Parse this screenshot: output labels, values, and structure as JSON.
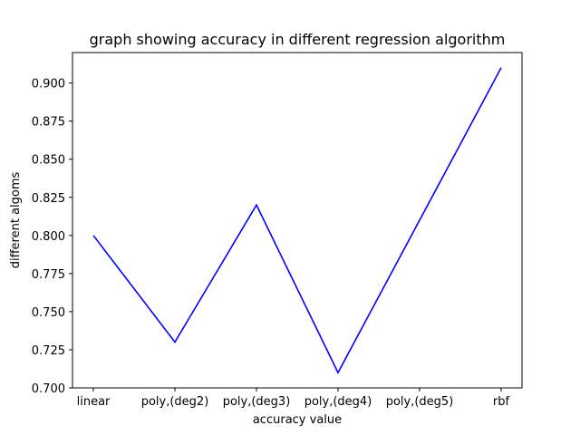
{
  "chart_data": {
    "type": "line",
    "title": "graph showing accuracy in different regression algorithm",
    "xlabel": "accuracy value",
    "ylabel": "different algoms",
    "categories": [
      "linear",
      "poly,(deg2)",
      "poly,(deg3)",
      "poly,(deg4)",
      "poly,(deg5)",
      "rbf"
    ],
    "series": [
      {
        "values": [
          0.8,
          0.73,
          0.82,
          0.71,
          0.81,
          0.91
        ]
      }
    ],
    "ylim": [
      0.7,
      0.92
    ],
    "yticks": [
      "0.700",
      "0.725",
      "0.750",
      "0.775",
      "0.800",
      "0.825",
      "0.850",
      "0.875",
      "0.900"
    ],
    "grid": false,
    "line_color": "#0000ff"
  }
}
